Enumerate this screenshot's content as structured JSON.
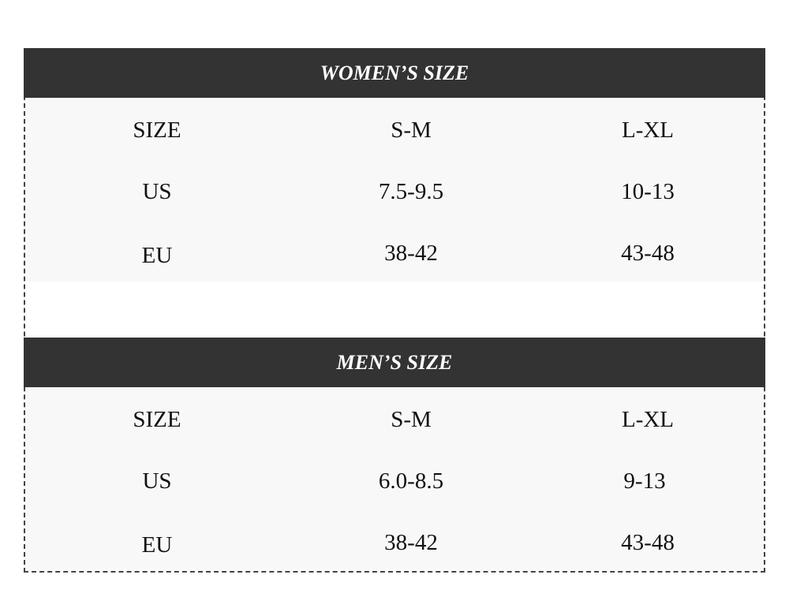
{
  "sections": [
    {
      "title": "WOMEN’S  SIZE",
      "rows": [
        [
          "SIZE",
          "S-M",
          "L-XL"
        ],
        [
          "US",
          "7.5-9.5",
          "10-13"
        ],
        [
          "EU",
          "38-42",
          "43-48"
        ]
      ]
    },
    {
      "title": "MEN’S SIZE",
      "rows": [
        [
          "SIZE",
          "S-M",
          "L-XL"
        ],
        [
          "US",
          "6.0-8.5",
          "9-13"
        ],
        [
          "EU",
          "38-42",
          "43-48"
        ]
      ]
    }
  ],
  "colors": {
    "header": "#333333",
    "row_bg": "#f8f8f8",
    "border": "#444444"
  }
}
